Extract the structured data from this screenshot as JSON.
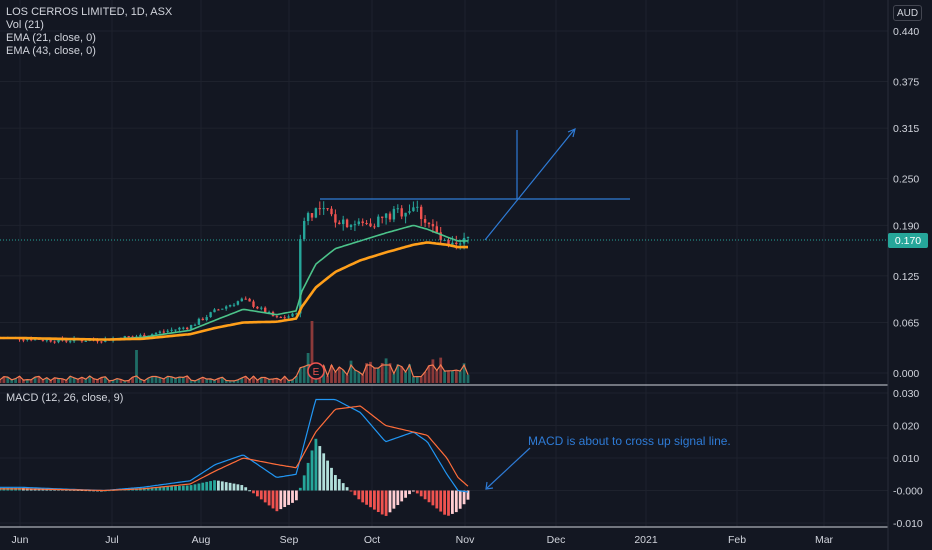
{
  "header": {
    "symbol_line": "LOS CERROS LIMITED, 1D, ASX",
    "indicators": [
      "Vol (21)",
      "EMA (21, close, 0)",
      "EMA (43, close, 0)"
    ],
    "currency": "AUD"
  },
  "macd_panel": {
    "label": "MACD (12, 26, close, 9)"
  },
  "annotation": {
    "text": "MACD is about to cross up signal line."
  },
  "earnings_marker": "E",
  "colors": {
    "background": "#131722",
    "up": "#26a69a",
    "down": "#ef5350",
    "ema21": "#4cc38a",
    "ema43": "#ff9f1a",
    "drawing": "#2e7bd6",
    "macd_line": "#2196f3",
    "signal_line": "#ff6d3a",
    "price_badge": "#26a69a"
  },
  "chart_data": [
    {
      "type": "candlestick",
      "title": "LOS CERROS LIMITED, 1D, ASX",
      "y_axis_ticks": [
        "0.440",
        "0.375",
        "0.315",
        "0.250",
        "0.190",
        "0.125",
        "0.065",
        "0.000"
      ],
      "y_axis_values": [
        0.44,
        0.375,
        0.315,
        0.25,
        0.19,
        0.125,
        0.065,
        0.0
      ],
      "x_axis_ticks": [
        "Jun",
        "Jul",
        "Aug",
        "Sep",
        "Oct",
        "Nov",
        "Dec",
        "2021",
        "Feb",
        "Mar"
      ],
      "last_price": "0.170",
      "last_price_value": 0.17,
      "resistance_level": 0.225,
      "price_series": {
        "dates": [
          "Jun 1",
          "Jun 15",
          "Jul 1",
          "Jul 15",
          "Aug 1",
          "Aug 10",
          "Aug 20",
          "Sep 1",
          "Sep 8",
          "Sep 10",
          "Sep 15",
          "Sep 22",
          "Oct 1",
          "Oct 10",
          "Oct 20",
          "Oct 25",
          "Nov 1",
          "Nov 5",
          "Nov 9"
        ],
        "close": [
          0.045,
          0.042,
          0.043,
          0.048,
          0.06,
          0.08,
          0.095,
          0.07,
          0.075,
          0.2,
          0.21,
          0.2,
          0.19,
          0.2,
          0.215,
          0.195,
          0.16,
          0.16,
          0.175
        ]
      },
      "ema21": [
        0.045,
        0.043,
        0.043,
        0.046,
        0.055,
        0.068,
        0.082,
        0.075,
        0.08,
        0.105,
        0.14,
        0.16,
        0.17,
        0.18,
        0.19,
        0.185,
        0.175,
        0.17,
        0.17
      ],
      "ema43": [
        0.045,
        0.044,
        0.043,
        0.044,
        0.05,
        0.058,
        0.065,
        0.066,
        0.07,
        0.085,
        0.11,
        0.13,
        0.145,
        0.155,
        0.165,
        0.168,
        0.165,
        0.162,
        0.162
      ]
    },
    {
      "type": "line",
      "title": "MACD (12, 26, close, 9)",
      "y_axis_ticks": [
        "0.030",
        "0.020",
        "0.010",
        "-0.000",
        "-0.010"
      ],
      "y_axis_values": [
        0.03,
        0.02,
        0.01,
        0.0,
        -0.01
      ],
      "x": [
        "Jun 1",
        "Jun 15",
        "Jul 1",
        "Jul 15",
        "Aug 1",
        "Aug 10",
        "Aug 20",
        "Sep 1",
        "Sep 8",
        "Sep 15",
        "Sep 22",
        "Oct 1",
        "Oct 10",
        "Oct 20",
        "Oct 25",
        "Nov 1",
        "Nov 5",
        "Nov 9"
      ],
      "series": [
        {
          "name": "MACD",
          "values": [
            0.001,
            0.0005,
            0.0,
            0.001,
            0.003,
            0.008,
            0.011,
            0.004,
            0.005,
            0.028,
            0.028,
            0.024,
            0.015,
            0.018,
            0.015,
            0.005,
            0.0,
            -0.0005
          ]
        },
        {
          "name": "Signal",
          "values": [
            0.0005,
            0.0003,
            0.0,
            0.0005,
            0.002,
            0.006,
            0.01,
            0.008,
            0.007,
            0.018,
            0.025,
            0.026,
            0.02,
            0.018,
            0.017,
            0.01,
            0.004,
            0.001
          ]
        }
      ]
    }
  ]
}
